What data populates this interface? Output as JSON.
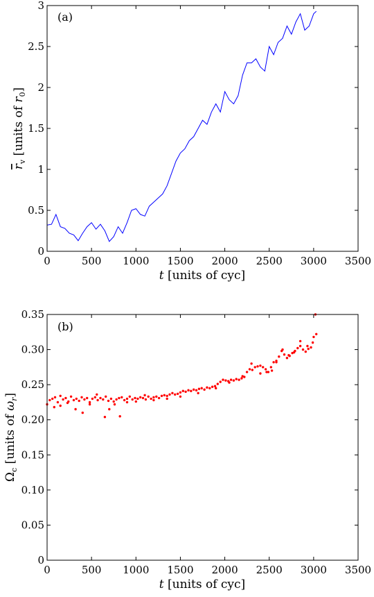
{
  "chart_data": [
    {
      "type": "line",
      "panel_label": "(a)",
      "title": "",
      "xlabel": "t [units of cyc]",
      "ylabel": "r̄v [units of r0]",
      "xlim": [
        0,
        3500
      ],
      "ylim": [
        0,
        3
      ],
      "xticks": [
        0,
        500,
        1000,
        1500,
        2000,
        2500,
        3000,
        3500
      ],
      "yticks": [
        0,
        0.5,
        1,
        1.5,
        2,
        2.5,
        3
      ],
      "ytick_labels": [
        "0",
        "0.5",
        "1",
        "1.5",
        "2",
        "2.5",
        "3"
      ],
      "grid": false,
      "color": "#0000ff",
      "series": [
        {
          "x": [
            0,
            50,
            100,
            150,
            200,
            250,
            300,
            350,
            400,
            450,
            500,
            550,
            600,
            650,
            700,
            750,
            800,
            850,
            900,
            950,
            1000,
            1050,
            1100,
            1150,
            1200,
            1250,
            1300,
            1350,
            1400,
            1450,
            1500,
            1550,
            1600,
            1650,
            1700,
            1750,
            1800,
            1850,
            1900,
            1950,
            2000,
            2050,
            2100,
            2150,
            2200,
            2250,
            2300,
            2350,
            2400,
            2450,
            2500,
            2550,
            2600,
            2650,
            2700,
            2750,
            2800,
            2850,
            2900,
            2950,
            3000,
            3030
          ],
          "y": [
            0.32,
            0.33,
            0.45,
            0.3,
            0.28,
            0.22,
            0.2,
            0.13,
            0.22,
            0.3,
            0.35,
            0.27,
            0.33,
            0.25,
            0.12,
            0.18,
            0.3,
            0.22,
            0.35,
            0.5,
            0.52,
            0.45,
            0.43,
            0.55,
            0.6,
            0.65,
            0.7,
            0.8,
            0.95,
            1.1,
            1.2,
            1.25,
            1.35,
            1.4,
            1.5,
            1.6,
            1.55,
            1.7,
            1.8,
            1.7,
            1.95,
            1.85,
            1.8,
            1.9,
            2.15,
            2.3,
            2.3,
            2.35,
            2.25,
            2.2,
            2.5,
            2.4,
            2.55,
            2.6,
            2.75,
            2.65,
            2.8,
            2.9,
            2.7,
            2.75,
            2.9,
            2.93
          ]
        }
      ]
    },
    {
      "type": "scatter",
      "panel_label": "(b)",
      "title": "",
      "xlabel": "t [units of cyc]",
      "ylabel": "Ωc [units of ωr]",
      "xlim": [
        0,
        3500
      ],
      "ylim": [
        0,
        0.35
      ],
      "xticks": [
        0,
        500,
        1000,
        1500,
        2000,
        2500,
        3000,
        3500
      ],
      "yticks": [
        0,
        0.05,
        0.1,
        0.15,
        0.2,
        0.25,
        0.3,
        0.35
      ],
      "ytick_labels": [
        "0",
        "0.05",
        "0.10",
        "0.15",
        "0.20",
        "0.25",
        "0.30",
        "0.35"
      ],
      "grid": false,
      "color": "#ff0000",
      "series": [
        {
          "x": [
            0,
            30,
            60,
            90,
            120,
            150,
            180,
            210,
            240,
            270,
            300,
            330,
            360,
            390,
            420,
            450,
            480,
            510,
            540,
            570,
            600,
            630,
            660,
            690,
            720,
            750,
            780,
            810,
            840,
            870,
            900,
            930,
            960,
            990,
            1020,
            1050,
            1080,
            1110,
            1140,
            1170,
            1200,
            1230,
            1260,
            1290,
            1320,
            1350,
            1380,
            1410,
            1440,
            1470,
            1500,
            1530,
            1560,
            1590,
            1620,
            1650,
            1680,
            1710,
            1740,
            1770,
            1800,
            1830,
            1860,
            1890,
            1920,
            1950,
            1980,
            2010,
            2040,
            2070,
            2100,
            2130,
            2160,
            2190,
            2220,
            2250,
            2280,
            2310,
            2340,
            2370,
            2400,
            2430,
            2460,
            2490,
            2520,
            2550,
            2580,
            2610,
            2640,
            2670,
            2700,
            2730,
            2760,
            2790,
            2820,
            2850,
            2880,
            2910,
            2940,
            2970,
            3000,
            3030,
            80,
            150,
            230,
            320,
            400,
            480,
            560,
            650,
            700,
            760,
            820,
            900,
            1000,
            1100,
            1200,
            1350,
            1500,
            1700,
            1900,
            2050,
            2200,
            2300,
            2400,
            2470,
            2530,
            2580,
            2650,
            2720,
            2780,
            2850,
            2930,
            2990,
            3020
          ],
          "y": [
            0.222,
            0.228,
            0.23,
            0.232,
            0.225,
            0.234,
            0.229,
            0.231,
            0.226,
            0.233,
            0.228,
            0.23,
            0.227,
            0.232,
            0.229,
            0.231,
            0.225,
            0.23,
            0.232,
            0.228,
            0.231,
            0.229,
            0.233,
            0.227,
            0.23,
            0.226,
            0.229,
            0.231,
            0.232,
            0.228,
            0.23,
            0.233,
            0.229,
            0.231,
            0.23,
            0.232,
            0.231,
            0.229,
            0.233,
            0.23,
            0.232,
            0.233,
            0.231,
            0.234,
            0.235,
            0.234,
            0.236,
            0.238,
            0.236,
            0.237,
            0.239,
            0.241,
            0.24,
            0.242,
            0.241,
            0.243,
            0.242,
            0.244,
            0.245,
            0.243,
            0.246,
            0.245,
            0.247,
            0.248,
            0.251,
            0.254,
            0.257,
            0.256,
            0.255,
            0.257,
            0.256,
            0.258,
            0.257,
            0.259,
            0.261,
            0.268,
            0.272,
            0.271,
            0.275,
            0.276,
            0.277,
            0.275,
            0.272,
            0.268,
            0.275,
            0.282,
            0.284,
            0.29,
            0.298,
            0.293,
            0.288,
            0.291,
            0.295,
            0.298,
            0.302,
            0.305,
            0.3,
            0.297,
            0.301,
            0.303,
            0.318,
            0.322,
            0.218,
            0.22,
            0.224,
            0.215,
            0.21,
            0.222,
            0.236,
            0.204,
            0.215,
            0.222,
            0.205,
            0.225,
            0.226,
            0.235,
            0.228,
            0.23,
            0.233,
            0.238,
            0.245,
            0.253,
            0.262,
            0.28,
            0.266,
            0.268,
            0.27,
            0.282,
            0.3,
            0.292,
            0.296,
            0.312,
            0.305,
            0.31,
            0.35
          ]
        }
      ]
    }
  ]
}
